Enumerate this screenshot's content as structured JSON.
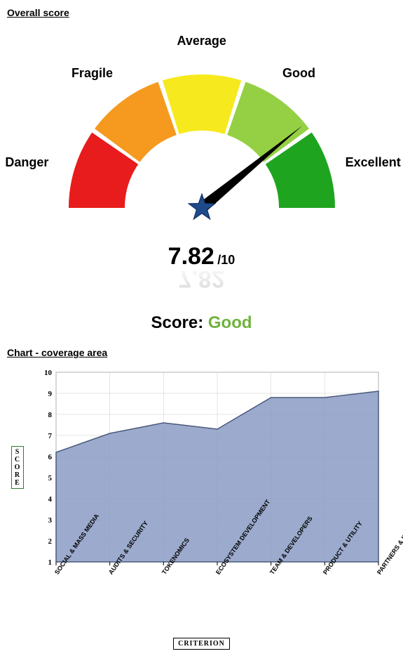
{
  "section1": {
    "title": "Overall score"
  },
  "gauge": {
    "segments": [
      {
        "label": "Danger",
        "color": "#e81c1c"
      },
      {
        "label": "Fragile",
        "color": "#f59a1e"
      },
      {
        "label": "Average",
        "color": "#f6ea1f"
      },
      {
        "label": "Good",
        "color": "#95d044"
      },
      {
        "label": "Excellent",
        "color": "#1fa41f"
      }
    ],
    "needle_color": "#000000",
    "needle_value": 7.82,
    "max": 10,
    "star_color": "#1e4a8a",
    "score_text": "7.82",
    "max_text": "/10"
  },
  "verdict": {
    "label": "Score:",
    "value": "Good",
    "value_color": "#6fb33f"
  },
  "section2": {
    "title": "Chart - coverage area"
  },
  "area_chart": {
    "type": "area",
    "ylabel": "SCORE",
    "xlabel": "CRITERION",
    "ylim": [
      1,
      10
    ],
    "ytick_step": 1,
    "fill_color": "#8a9bc4",
    "fill_opacity": 0.85,
    "line_color": "#4a5a7a",
    "grid_color": "#cccccc",
    "background_color": "#ffffff",
    "label_fontsize": 10,
    "tick_fontsize": 11,
    "categories": [
      "SOCIAL & MASS MEDIA",
      "AUDITS & SECURITY",
      "TOKENOMICS",
      "ECOSYSTEM DEVELOPMENT",
      "TEAM & DEVELOPERS",
      "PRODUCT & UTILITY",
      "PARTNERS & INVESTORS"
    ],
    "values": [
      6.2,
      7.1,
      7.6,
      7.3,
      8.8,
      8.8,
      9.1
    ]
  }
}
